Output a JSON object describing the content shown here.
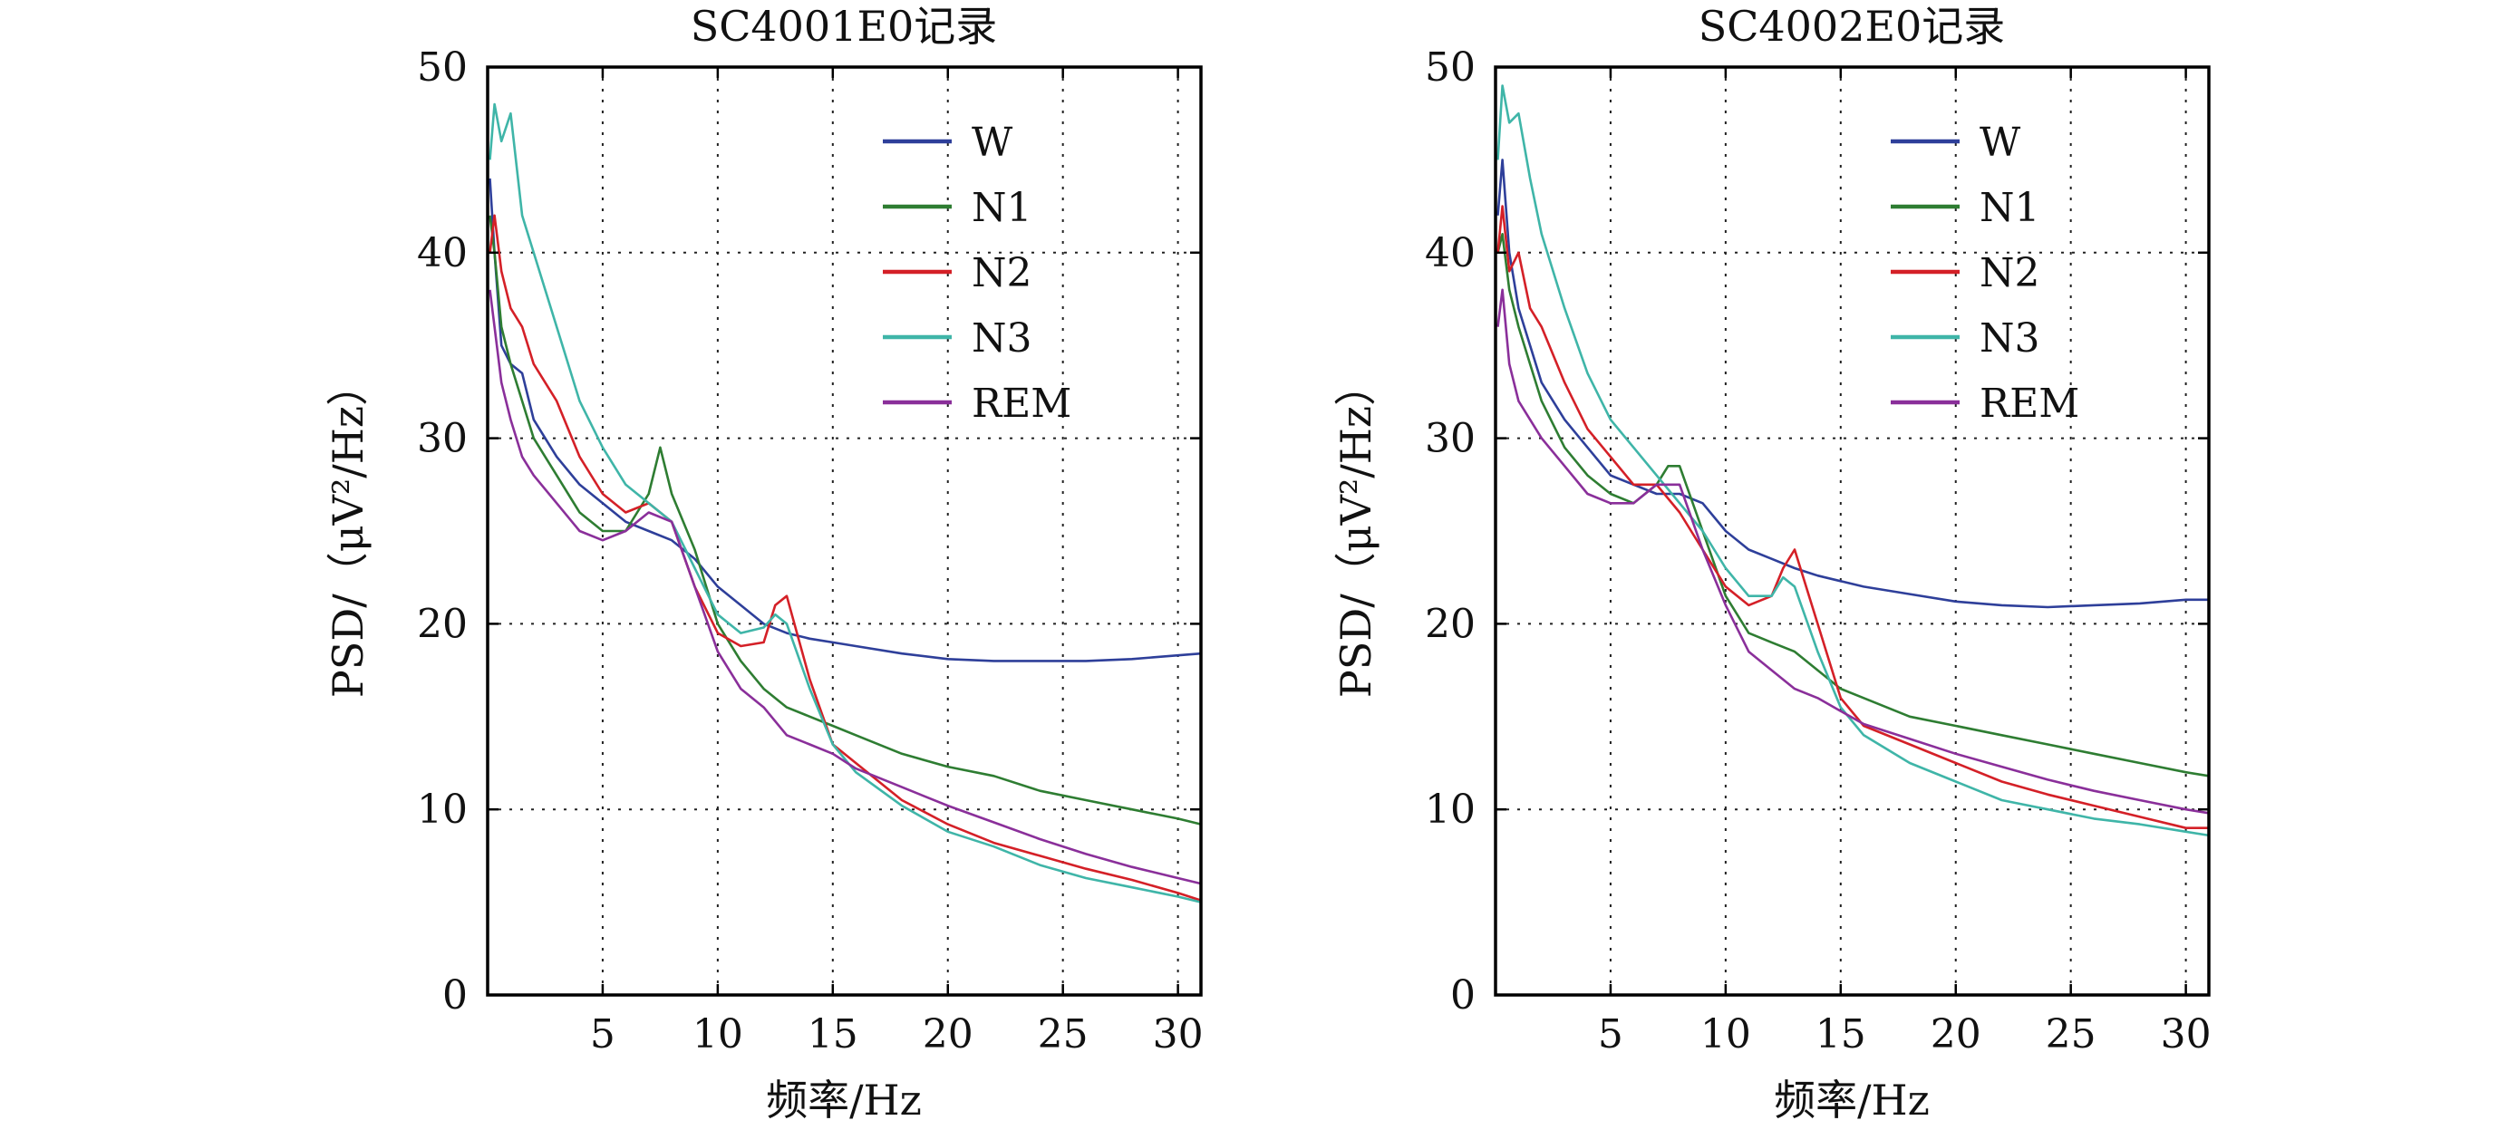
{
  "chart_data": [
    {
      "type": "line",
      "title": "SC4001E0记录",
      "xlabel": "频率/Hz",
      "ylabel": "PSD/（μV²/Hz）",
      "xlim": [
        0,
        31
      ],
      "ylim": [
        0,
        50
      ],
      "xticks": [
        5,
        10,
        15,
        20,
        25,
        30
      ],
      "yticks": [
        0,
        10,
        20,
        30,
        40,
        50
      ],
      "grid": true,
      "legend_position": "top-right",
      "series": [
        {
          "name": "W",
          "color": "#2e3f9a",
          "x": [
            0.1,
            0.3,
            0.6,
            1,
            1.5,
            2,
            3,
            4,
            5,
            6,
            7,
            8,
            9,
            10,
            11,
            12,
            13,
            14,
            15,
            16,
            18,
            20,
            22,
            24,
            26,
            28,
            30,
            31
          ],
          "y": [
            44,
            40,
            35,
            34,
            33.5,
            31,
            29,
            27.5,
            26.5,
            25.5,
            25,
            24.5,
            23.5,
            22,
            21,
            20,
            19.5,
            19.2,
            19,
            18.8,
            18.4,
            18.1,
            18.0,
            18.0,
            18.0,
            18.1,
            18.3,
            18.4
          ]
        },
        {
          "name": "N1",
          "color": "#2e7d32",
          "x": [
            0.1,
            0.3,
            0.6,
            1,
            1.5,
            2,
            3,
            4,
            5,
            6,
            7,
            7.5,
            8,
            9,
            10,
            11,
            12,
            13,
            14,
            15,
            16,
            18,
            20,
            22,
            24,
            26,
            28,
            30,
            31
          ],
          "y": [
            42,
            40,
            36,
            34,
            32,
            30,
            28,
            26,
            25,
            25,
            27,
            29.5,
            27,
            24,
            20,
            18,
            16.5,
            15.5,
            15,
            14.5,
            14,
            13,
            12.3,
            11.8,
            11,
            10.5,
            10,
            9.5,
            9.2
          ]
        },
        {
          "name": "N2",
          "color": "#d42027",
          "x": [
            0.1,
            0.3,
            0.6,
            1,
            1.5,
            2,
            3,
            4,
            5,
            6,
            7,
            8,
            9,
            10,
            11,
            12,
            12.5,
            13,
            14,
            15,
            16,
            18,
            20,
            22,
            24,
            26,
            28,
            30,
            31
          ],
          "y": [
            40,
            42,
            39,
            37,
            36,
            34,
            32,
            29,
            27,
            26,
            26.5,
            25.5,
            22,
            19.5,
            18.8,
            19,
            21,
            21.5,
            17,
            13.5,
            12.5,
            10.5,
            9.2,
            8.2,
            7.5,
            6.8,
            6.2,
            5.5,
            5.1
          ]
        },
        {
          "name": "N3",
          "color": "#3fb5a8",
          "x": [
            0.1,
            0.3,
            0.6,
            1,
            1.5,
            2,
            3,
            4,
            5,
            6,
            7,
            8,
            9,
            10,
            11,
            12,
            12.5,
            13,
            14,
            15,
            16,
            18,
            20,
            22,
            24,
            26,
            28,
            30,
            31
          ],
          "y": [
            45,
            48,
            46,
            47.5,
            42,
            40,
            36,
            32,
            29.5,
            27.5,
            26.5,
            25.5,
            23,
            20.5,
            19.5,
            19.8,
            20.5,
            20,
            16.5,
            13.5,
            12,
            10.2,
            8.8,
            8,
            7,
            6.3,
            5.8,
            5.3,
            5
          ]
        },
        {
          "name": "REM",
          "color": "#8a2f9a",
          "x": [
            0.1,
            0.3,
            0.6,
            1,
            1.5,
            2,
            3,
            4,
            5,
            6,
            7,
            8,
            9,
            10,
            11,
            12,
            13,
            14,
            15,
            16,
            18,
            20,
            22,
            24,
            26,
            28,
            30,
            31
          ],
          "y": [
            38,
            36,
            33,
            31,
            29,
            28,
            26.5,
            25,
            24.5,
            25,
            26,
            25.5,
            22,
            18.5,
            16.5,
            15.5,
            14,
            13.5,
            13,
            12.2,
            11.2,
            10.2,
            9.3,
            8.4,
            7.6,
            6.9,
            6.3,
            6.0
          ]
        }
      ]
    },
    {
      "type": "line",
      "title": "SC4002E0记录",
      "xlabel": "频率/Hz",
      "ylabel": "PSD/（μV²/Hz）",
      "xlim": [
        0,
        31
      ],
      "ylim": [
        0,
        50
      ],
      "xticks": [
        5,
        10,
        15,
        20,
        25,
        30
      ],
      "yticks": [
        0,
        10,
        20,
        30,
        40,
        50
      ],
      "grid": true,
      "legend_position": "top-right",
      "series": [
        {
          "name": "W",
          "color": "#2e3f9a",
          "x": [
            0.1,
            0.3,
            0.6,
            1,
            1.5,
            2,
            3,
            4,
            5,
            6,
            7,
            8,
            9,
            10,
            11,
            12,
            13,
            14,
            15,
            16,
            18,
            20,
            22,
            24,
            26,
            28,
            30,
            31
          ],
          "y": [
            42,
            45,
            40,
            37,
            35,
            33,
            31,
            29.5,
            28,
            27.5,
            27,
            27,
            26.5,
            25,
            24,
            23.5,
            23,
            22.6,
            22.3,
            22,
            21.6,
            21.2,
            21.0,
            20.9,
            21.0,
            21.1,
            21.3,
            21.3
          ]
        },
        {
          "name": "N1",
          "color": "#2e7d32",
          "x": [
            0.1,
            0.3,
            0.6,
            1,
            1.5,
            2,
            3,
            4,
            5,
            6,
            7,
            7.5,
            8,
            9,
            10,
            11,
            12,
            13,
            14,
            15,
            16,
            18,
            20,
            22,
            24,
            26,
            28,
            30,
            31
          ],
          "y": [
            40,
            41,
            38,
            36,
            34,
            32,
            29.5,
            28,
            27,
            26.5,
            27.5,
            28.5,
            28.5,
            25,
            21.5,
            19.5,
            19,
            18.5,
            17.5,
            16.5,
            16,
            15,
            14.5,
            14,
            13.5,
            13,
            12.5,
            12,
            11.8
          ]
        },
        {
          "name": "N2",
          "color": "#d42027",
          "x": [
            0.1,
            0.3,
            0.6,
            1,
            1.5,
            2,
            3,
            4,
            5,
            6,
            7,
            8,
            9,
            10,
            11,
            12,
            12.5,
            13,
            14,
            15,
            16,
            18,
            20,
            22,
            24,
            26,
            28,
            30,
            31
          ],
          "y": [
            40,
            42.5,
            39,
            40,
            37,
            36,
            33,
            30.5,
            29,
            27.5,
            27.5,
            26,
            24,
            22,
            21,
            21.5,
            23,
            24,
            20,
            16,
            14.5,
            13.5,
            12.5,
            11.5,
            10.8,
            10.2,
            9.6,
            9,
            9
          ]
        },
        {
          "name": "N3",
          "color": "#3fb5a8",
          "x": [
            0.1,
            0.3,
            0.6,
            1,
            1.5,
            2,
            3,
            4,
            5,
            6,
            7,
            8,
            9,
            10,
            11,
            12,
            12.5,
            13,
            14,
            15,
            16,
            18,
            20,
            22,
            24,
            26,
            28,
            30,
            31
          ],
          "y": [
            45,
            49,
            47,
            47.5,
            44,
            41,
            37,
            33.5,
            31,
            29.5,
            28,
            26.5,
            25,
            23,
            21.5,
            21.5,
            22.5,
            22,
            18.5,
            15.5,
            14,
            12.5,
            11.5,
            10.5,
            10,
            9.5,
            9.2,
            8.8,
            8.6
          ]
        },
        {
          "name": "REM",
          "color": "#8a2f9a",
          "x": [
            0.1,
            0.3,
            0.6,
            1,
            1.5,
            2,
            3,
            4,
            5,
            6,
            7,
            8,
            9,
            10,
            11,
            12,
            13,
            14,
            15,
            16,
            18,
            20,
            22,
            24,
            26,
            28,
            30,
            31
          ],
          "y": [
            36,
            38,
            34,
            32,
            31,
            30,
            28.5,
            27,
            26.5,
            26.5,
            27.5,
            27.5,
            24,
            21,
            18.5,
            17.5,
            16.5,
            16,
            15.3,
            14.6,
            13.8,
            13,
            12.3,
            11.6,
            11,
            10.5,
            10,
            9.8
          ]
        }
      ]
    }
  ]
}
